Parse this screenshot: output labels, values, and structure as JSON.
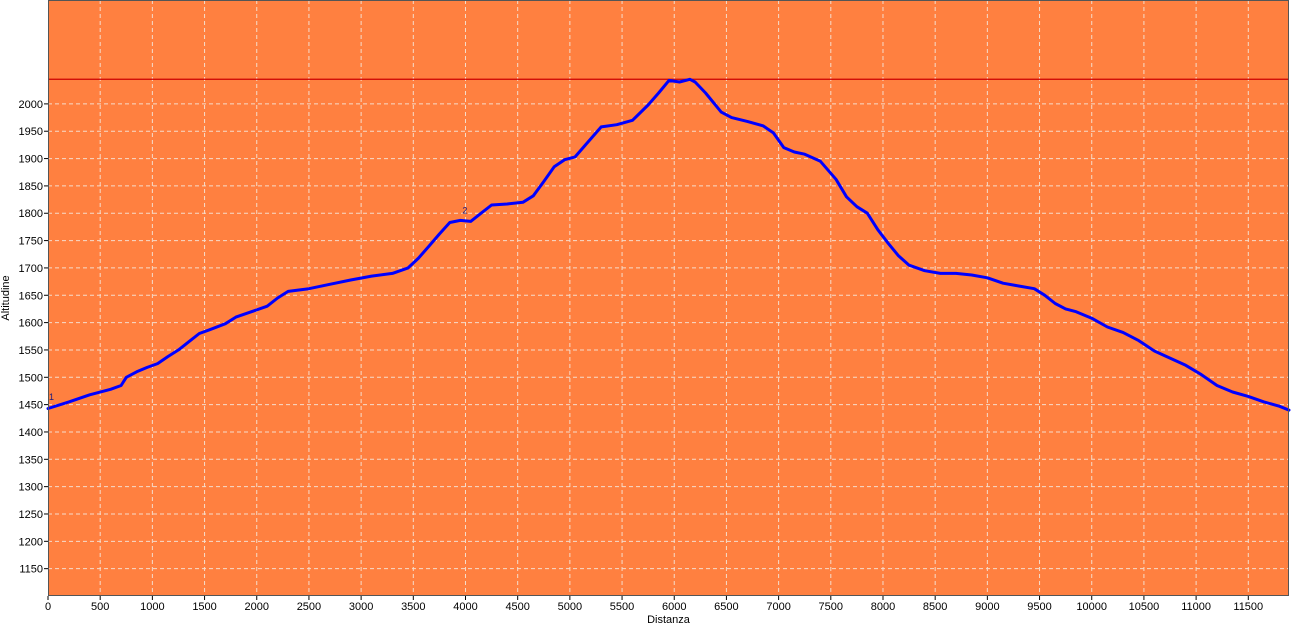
{
  "chart_data": {
    "type": "line",
    "title": "",
    "xlabel": "Distanza",
    "ylabel": "Altitudine",
    "xlim": [
      0,
      11890
    ],
    "ylim": [
      1100,
      2190
    ],
    "x_ticks": [
      0,
      500,
      1000,
      1500,
      2000,
      2500,
      3000,
      3500,
      4000,
      4500,
      5000,
      5500,
      6000,
      6500,
      7000,
      7500,
      8000,
      8500,
      9000,
      9500,
      10000,
      10500,
      11000,
      11500
    ],
    "y_ticks": [
      1150,
      1200,
      1250,
      1300,
      1350,
      1400,
      1450,
      1500,
      1550,
      1600,
      1650,
      1700,
      1750,
      1800,
      1850,
      1900,
      1950,
      2000
    ],
    "grid": true,
    "background_color": "#ff8040",
    "line_color": "#0000ff",
    "max_line": {
      "value": 2045,
      "color": "#cc0000"
    },
    "markers": [
      {
        "label": "1",
        "x": 0,
        "y": 1455
      },
      {
        "label": "2",
        "x": 3960,
        "y": 1796
      }
    ],
    "series": [
      {
        "x": [
          0,
          200,
          400,
          600,
          700,
          750,
          850,
          950,
          1050,
          1150,
          1250,
          1350,
          1450,
          1550,
          1700,
          1800,
          1950,
          2100,
          2200,
          2300,
          2500,
          2700,
          2900,
          3100,
          3300,
          3450,
          3550,
          3650,
          3750,
          3850,
          3950,
          4050,
          4150,
          4250,
          4400,
          4550,
          4650,
          4750,
          4850,
          4950,
          5050,
          5150,
          5300,
          5450,
          5600,
          5750,
          5850,
          5950,
          6050,
          6150,
          6200,
          6300,
          6450,
          6550,
          6700,
          6850,
          6950,
          7050,
          7150,
          7250,
          7400,
          7550,
          7650,
          7750,
          7850,
          7950,
          8050,
          8150,
          8250,
          8400,
          8550,
          8700,
          8850,
          9000,
          9150,
          9300,
          9450,
          9550,
          9650,
          9750,
          9850,
          10000,
          10150,
          10300,
          10450,
          10600,
          10750,
          10900,
          11050,
          11200,
          11350,
          11500,
          11650,
          11800,
          11890
        ],
        "y": [
          1443,
          1455,
          1468,
          1478,
          1485,
          1500,
          1510,
          1518,
          1525,
          1538,
          1550,
          1565,
          1580,
          1587,
          1598,
          1610,
          1620,
          1630,
          1645,
          1657,
          1662,
          1670,
          1678,
          1685,
          1690,
          1700,
          1718,
          1740,
          1762,
          1783,
          1787,
          1785,
          1800,
          1815,
          1817,
          1820,
          1832,
          1858,
          1885,
          1898,
          1903,
          1925,
          1958,
          1962,
          1970,
          1998,
          2020,
          2043,
          2040,
          2045,
          2040,
          2020,
          1985,
          1975,
          1968,
          1960,
          1947,
          1920,
          1912,
          1908,
          1895,
          1862,
          1830,
          1812,
          1800,
          1770,
          1745,
          1722,
          1705,
          1695,
          1690,
          1690,
          1687,
          1682,
          1672,
          1667,
          1662,
          1650,
          1635,
          1625,
          1620,
          1608,
          1592,
          1582,
          1567,
          1548,
          1535,
          1522,
          1505,
          1485,
          1473,
          1465,
          1455,
          1447,
          1440
        ]
      }
    ]
  }
}
